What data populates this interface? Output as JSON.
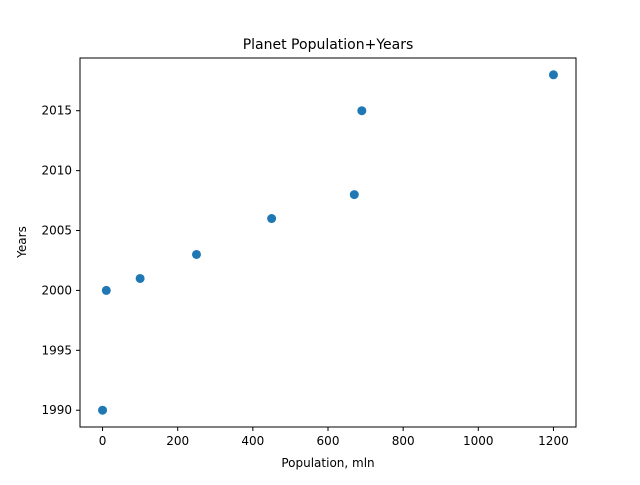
{
  "chart_data": {
    "type": "scatter",
    "title": "Planet Population+Years",
    "xlabel": "Population, mln",
    "ylabel": "Years",
    "xlim": [
      -60,
      1260
    ],
    "ylim": [
      1988.6,
      2019.4
    ],
    "xticks": [
      0,
      200,
      400,
      600,
      800,
      1000,
      1200
    ],
    "xtick_labels": [
      "0",
      "200",
      "400",
      "600",
      "800",
      "1000",
      "1200"
    ],
    "yticks": [
      1990,
      1995,
      2000,
      2005,
      2010,
      2015
    ],
    "ytick_labels": [
      "1990",
      "1995",
      "2000",
      "2005",
      "2010",
      "2015"
    ],
    "grid": false,
    "series": [
      {
        "color": "#1f77b4",
        "points": [
          {
            "x": 0,
            "y": 1990
          },
          {
            "x": 10,
            "y": 2000
          },
          {
            "x": 100,
            "y": 2001
          },
          {
            "x": 250,
            "y": 2003
          },
          {
            "x": 450,
            "y": 2006
          },
          {
            "x": 670,
            "y": 2008
          },
          {
            "x": 690,
            "y": 2015
          },
          {
            "x": 1200,
            "y": 2018
          }
        ]
      }
    ]
  }
}
